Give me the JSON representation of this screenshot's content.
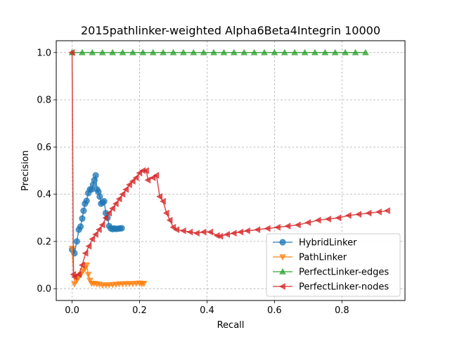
{
  "chart_data": {
    "type": "line",
    "title": "2015pathlinker-weighted Alpha6Beta4Integrin 10000",
    "xlabel": "Recall",
    "ylabel": "Precision",
    "xlim": [
      -0.047,
      0.987
    ],
    "ylim": [
      -0.05,
      1.05
    ],
    "xticks": [
      0.0,
      0.2,
      0.4,
      0.6,
      0.8
    ],
    "xtick_labels": [
      "0.0",
      "0.2",
      "0.4",
      "0.6",
      "0.8"
    ],
    "yticks": [
      0.0,
      0.2,
      0.4,
      0.6,
      0.8,
      1.0
    ],
    "ytick_labels": [
      "0.0",
      "0.2",
      "0.4",
      "0.6",
      "0.8",
      "1.0"
    ],
    "grid": true,
    "legend_position": "lower-right",
    "series": [
      {
        "name": "HybridLinker",
        "color": "#1f77b4",
        "marker": "circle",
        "x": [
          0.0,
          0.007,
          0.014,
          0.02,
          0.025,
          0.03,
          0.034,
          0.038,
          0.043,
          0.048,
          0.053,
          0.058,
          0.062,
          0.066,
          0.07,
          0.074,
          0.078,
          0.082,
          0.086,
          0.091,
          0.095,
          0.1,
          0.105,
          0.11,
          0.115,
          0.12,
          0.125,
          0.13,
          0.136,
          0.142,
          0.147
        ],
        "y": [
          0.165,
          0.15,
          0.2,
          0.25,
          0.263,
          0.297,
          0.33,
          0.36,
          0.372,
          0.405,
          0.42,
          0.42,
          0.44,
          0.46,
          0.48,
          0.42,
          0.41,
          0.39,
          0.36,
          0.365,
          0.37,
          0.32,
          0.3,
          0.265,
          0.255,
          0.252,
          0.255,
          0.253,
          0.254,
          0.255,
          0.256
        ]
      },
      {
        "name": "PathLinker",
        "color": "#ff7f0e",
        "marker": "triangle-down",
        "x": [
          0.0,
          0.007,
          0.014,
          0.02,
          0.026,
          0.032,
          0.038,
          0.043,
          0.048,
          0.053,
          0.058,
          0.065,
          0.073,
          0.081,
          0.09,
          0.1,
          0.11,
          0.12,
          0.13,
          0.14,
          0.15,
          0.16,
          0.17,
          0.18,
          0.19,
          0.2,
          0.207,
          0.213
        ],
        "y": [
          0.17,
          0.02,
          0.035,
          0.05,
          0.06,
          0.075,
          0.085,
          0.1,
          0.06,
          0.035,
          0.022,
          0.022,
          0.02,
          0.018,
          0.015,
          0.015,
          0.016,
          0.017,
          0.018,
          0.02,
          0.02,
          0.021,
          0.021,
          0.021,
          0.022,
          0.023,
          0.02,
          0.022
        ]
      },
      {
        "name": "PerfectLinker-edges",
        "color": "#2ca02c",
        "marker": "triangle-up",
        "x": [
          0.0,
          0.03,
          0.06,
          0.09,
          0.12,
          0.15,
          0.18,
          0.21,
          0.24,
          0.27,
          0.3,
          0.33,
          0.36,
          0.39,
          0.42,
          0.45,
          0.48,
          0.51,
          0.54,
          0.57,
          0.6,
          0.63,
          0.66,
          0.69,
          0.72,
          0.75,
          0.78,
          0.81,
          0.84,
          0.87
        ],
        "y": [
          1.0,
          1.0,
          1.0,
          1.0,
          1.0,
          1.0,
          1.0,
          1.0,
          1.0,
          1.0,
          1.0,
          1.0,
          1.0,
          1.0,
          1.0,
          1.0,
          1.0,
          1.0,
          1.0,
          1.0,
          1.0,
          1.0,
          1.0,
          1.0,
          1.0,
          1.0,
          1.0,
          1.0,
          1.0,
          1.0
        ]
      },
      {
        "name": "PerfectLinker-nodes",
        "color": "#d62728",
        "marker": "triangle-left",
        "x": [
          0.0,
          0.004,
          0.008,
          0.02,
          0.03,
          0.04,
          0.05,
          0.06,
          0.07,
          0.08,
          0.09,
          0.1,
          0.11,
          0.12,
          0.13,
          0.14,
          0.15,
          0.16,
          0.17,
          0.18,
          0.19,
          0.2,
          0.21,
          0.22,
          0.225,
          0.24,
          0.25,
          0.26,
          0.27,
          0.28,
          0.29,
          0.3,
          0.31,
          0.33,
          0.35,
          0.37,
          0.39,
          0.41,
          0.43,
          0.44,
          0.46,
          0.48,
          0.5,
          0.52,
          0.55,
          0.58,
          0.61,
          0.64,
          0.67,
          0.7,
          0.73,
          0.76,
          0.79,
          0.82,
          0.85,
          0.88,
          0.91,
          0.935
        ],
        "y": [
          1.0,
          0.06,
          0.05,
          0.06,
          0.1,
          0.15,
          0.18,
          0.21,
          0.23,
          0.25,
          0.27,
          0.3,
          0.32,
          0.34,
          0.36,
          0.38,
          0.4,
          0.42,
          0.44,
          0.455,
          0.47,
          0.49,
          0.5,
          0.5,
          0.46,
          0.47,
          0.48,
          0.39,
          0.37,
          0.32,
          0.29,
          0.26,
          0.25,
          0.245,
          0.24,
          0.235,
          0.24,
          0.24,
          0.225,
          0.222,
          0.23,
          0.235,
          0.24,
          0.245,
          0.25,
          0.255,
          0.26,
          0.265,
          0.27,
          0.28,
          0.29,
          0.295,
          0.3,
          0.31,
          0.315,
          0.32,
          0.325,
          0.33
        ]
      }
    ]
  }
}
